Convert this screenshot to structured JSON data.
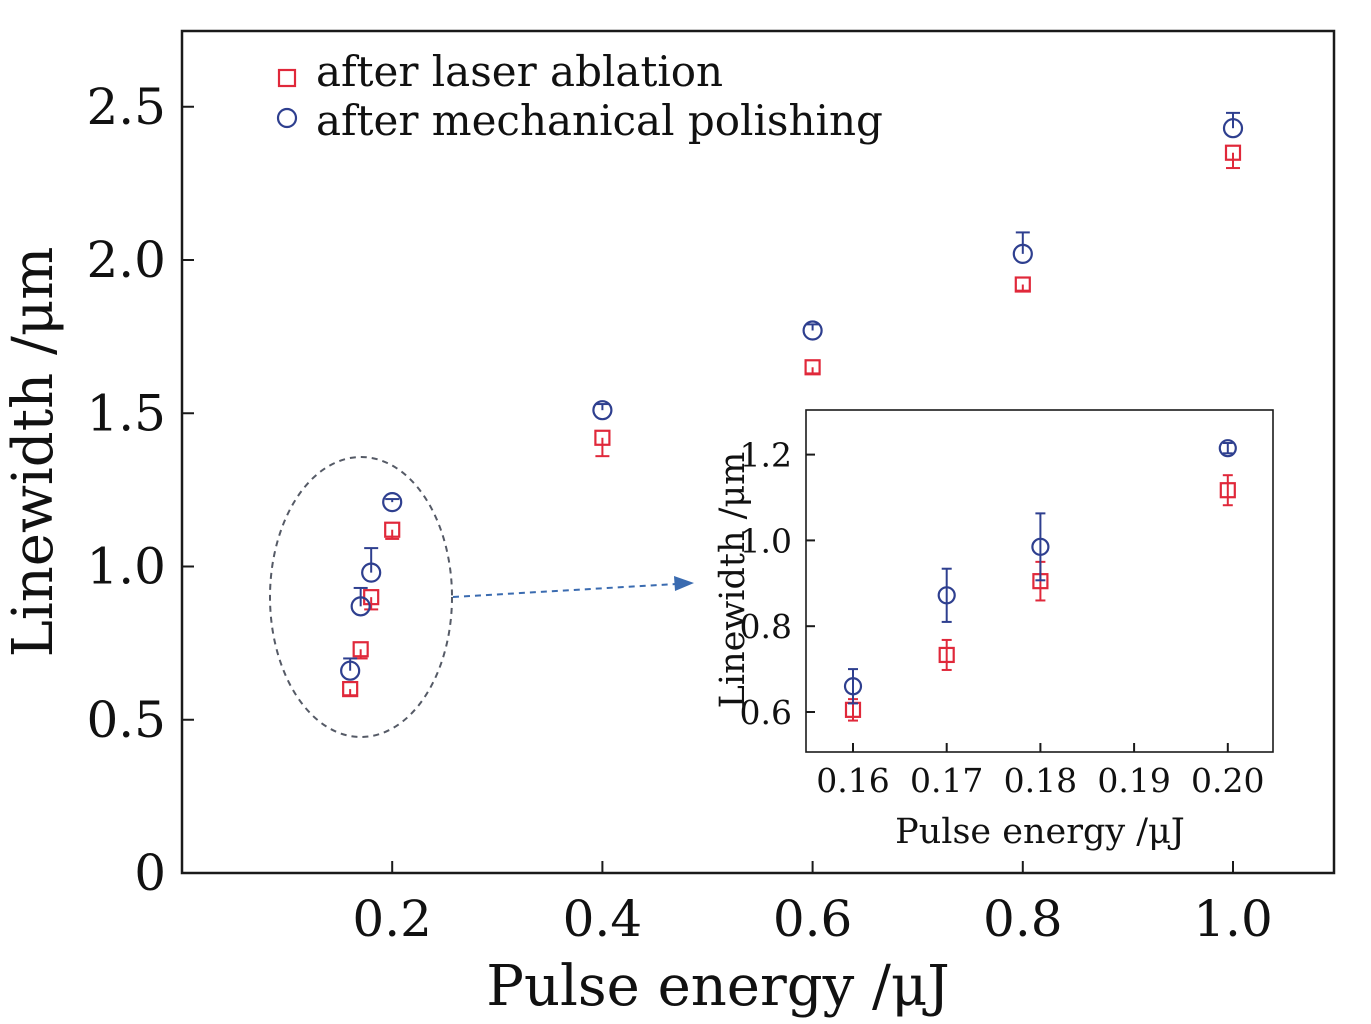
{
  "colors": {
    "ablation": "#e0283a",
    "polishing": "#2e3f8f",
    "arrow": "#3a6bb0",
    "ellipse": "#555a66",
    "axis": "#1a1a1a"
  },
  "icons": {
    "ablation_marker": "square-marker-icon",
    "polishing_marker": "circle-marker-icon",
    "arrow": "arrow-right-icon"
  },
  "chart_data": [
    {
      "id": "main",
      "type": "scatter",
      "xlabel": "Pulse energy /μJ",
      "ylabel": "Linewidth /μm",
      "xlim": [
        0,
        1.1
      ],
      "ylim": [
        0,
        2.7
      ],
      "xticks": [
        0.2,
        0.4,
        0.6,
        0.8,
        1.0
      ],
      "xtick_labels": [
        "0.2",
        "0.4",
        "0.6",
        "0.8",
        "1.0"
      ],
      "yticks": [
        0,
        0.5,
        1.0,
        1.5,
        2.0,
        2.5
      ],
      "ytick_labels": [
        "0",
        "0.5",
        "1.0",
        "1.5",
        "2.0",
        "2.5"
      ],
      "legend_position": "top-left",
      "annotation": "dashed ellipse around 0.16–0.20 μJ points with dashed arrow pointing to inset",
      "series": [
        {
          "name": "after laser ablation",
          "marker": "square",
          "x": [
            0.16,
            0.17,
            0.18,
            0.2,
            0.4,
            0.6,
            0.8,
            1.0
          ],
          "y": [
            0.6,
            0.73,
            0.9,
            1.12,
            1.42,
            1.65,
            1.92,
            2.35
          ],
          "err": [
            0.02,
            0.03,
            0.04,
            0.03,
            0.06,
            0.02,
            0.02,
            0.05
          ]
        },
        {
          "name": "after mechanical polishing",
          "marker": "circle",
          "x": [
            0.16,
            0.17,
            0.18,
            0.2,
            0.4,
            0.6,
            0.8,
            1.0
          ],
          "y": [
            0.66,
            0.87,
            0.98,
            1.21,
            1.51,
            1.77,
            2.02,
            2.43
          ],
          "err": [
            0.04,
            0.06,
            0.08,
            0.01,
            0.02,
            0.02,
            0.07,
            0.05
          ]
        }
      ]
    },
    {
      "id": "inset",
      "type": "scatter",
      "xlabel": "Pulse energy /μJ",
      "ylabel": "Linewidth /μm",
      "xlim": [
        0.155,
        0.205
      ],
      "ylim": [
        0.5,
        1.3
      ],
      "xticks": [
        0.16,
        0.17,
        0.18,
        0.19,
        0.2
      ],
      "xtick_labels": [
        "0.16",
        "0.17",
        "0.18",
        "0.19",
        "0.20"
      ],
      "yticks": [
        0.6,
        0.8,
        1.0,
        1.2
      ],
      "ytick_labels": [
        "0.6",
        "0.8",
        "1.0",
        "1.2"
      ],
      "series": [
        {
          "name": "after laser ablation",
          "marker": "square",
          "x": [
            0.16,
            0.17,
            0.18,
            0.2
          ],
          "y": [
            0.605,
            0.733,
            0.905,
            1.117
          ],
          "err": [
            0.025,
            0.035,
            0.045,
            0.035
          ]
        },
        {
          "name": "after mechanical polishing",
          "marker": "circle",
          "x": [
            0.16,
            0.17,
            0.18,
            0.2
          ],
          "y": [
            0.66,
            0.872,
            0.985,
            1.215
          ],
          "err": [
            0.04,
            0.062,
            0.078,
            0.012
          ]
        }
      ]
    }
  ]
}
